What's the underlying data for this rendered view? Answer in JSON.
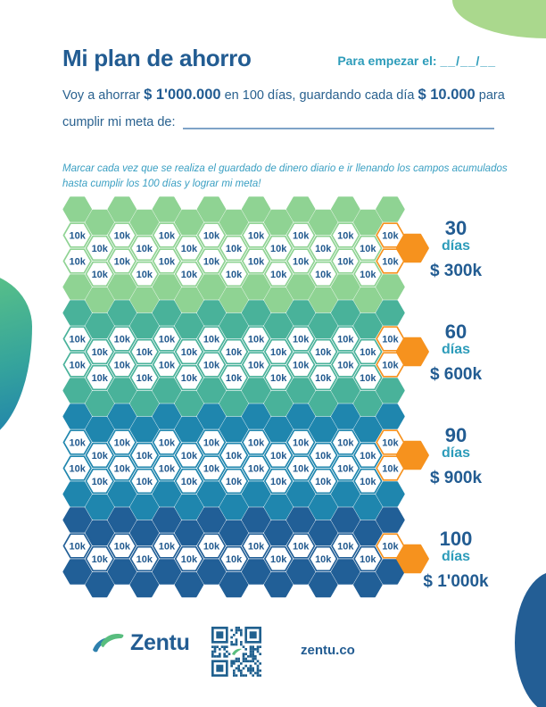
{
  "page": {
    "title": "Mi plan de ahorro",
    "start_label": "Para empezar el:",
    "start_blank": "__/__/__",
    "intro": {
      "s1": "Voy a ahorrar ",
      "s2": "$ 1'000.000",
      "s3": " en 100 días, guardando cada día ",
      "s4": "$ 10.000",
      "s5": " para",
      "line2_label": "cumplir mi meta de:"
    },
    "instructions_line1": "Marcar cada vez que se realiza el guardado de dinero diario e ir llenando los campos acumulados",
    "instructions_line2": "hasta cumplir los 100 días y lograr mi meta!"
  },
  "milestones": [
    {
      "days": "30",
      "unit": "días",
      "amount": "$ 300k"
    },
    {
      "days": "60",
      "unit": "días",
      "amount": "$ 600k"
    },
    {
      "days": "90",
      "unit": "días",
      "amount": "$ 900k"
    },
    {
      "days": "100",
      "unit": "días",
      "amount": "$ 1'000k"
    }
  ],
  "grid": {
    "cell_label": "10k",
    "columns": 15,
    "cell_fill": "#ffffff",
    "cell_text_color": "#21598e",
    "marker_color": "#f6921e",
    "bands": [
      {
        "name": "band-1-green",
        "color": "#8fd393",
        "rows": [
          "solid",
          "cells",
          "cells",
          "solid"
        ]
      },
      {
        "name": "band-2-teal",
        "color": "#49b29a",
        "rows": [
          "solid",
          "cells",
          "cells",
          "solid"
        ]
      },
      {
        "name": "band-3-blue",
        "color": "#1f86ae",
        "rows": [
          "solid",
          "cells",
          "cells",
          "solid"
        ]
      },
      {
        "name": "band-4-navy",
        "color": "#215f97",
        "rows": [
          "solid",
          "cells",
          "solid"
        ]
      }
    ]
  },
  "footer": {
    "brand": "Zentu",
    "url": "zentu.co",
    "qr_color": "#21618f",
    "logo_green": "#58bd7e",
    "logo_teal": "#2e80ad"
  },
  "colors": {
    "navy_text": "#225c92",
    "teal_text": "#2d9cba",
    "underline": "#7fa3c7",
    "blob_top_right": "#aad88d",
    "blob_bottom_right": "#235e95"
  }
}
